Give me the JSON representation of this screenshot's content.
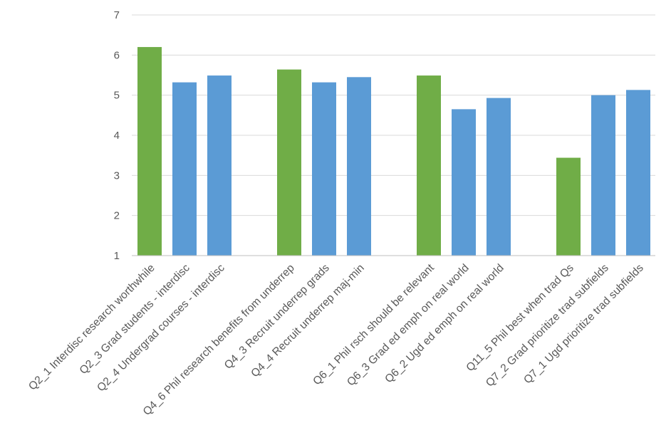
{
  "chart_data": {
    "type": "bar",
    "title": "",
    "xlabel": "",
    "ylabel": "",
    "ylim": [
      1,
      7
    ],
    "yticks": [
      1,
      2,
      3,
      4,
      5,
      6,
      7
    ],
    "grid": true,
    "colors": {
      "highlight": "#70AD47",
      "normal": "#5B9BD5",
      "gridline": "#D9D9D9",
      "axis": "#BFBFBF"
    },
    "groups": [
      {
        "bars": [
          {
            "label": "Q2_1 Interdisc research worthwhile",
            "value": 6.2,
            "highlight": true
          },
          {
            "label": "Q2_3 Grad students - interdisc",
            "value": 5.32,
            "highlight": false
          },
          {
            "label": "Q2_4 Undergrad courses - interdisc",
            "value": 5.49,
            "highlight": false
          }
        ]
      },
      {
        "bars": [
          {
            "label": "Q4_6 Phil research benefits from underrep",
            "value": 5.64,
            "highlight": true
          },
          {
            "label": "Q4_3 Recruit underrep grads",
            "value": 5.32,
            "highlight": false
          },
          {
            "label": "Q4_4 Recruit underrep maj-min",
            "value": 5.45,
            "highlight": false
          }
        ]
      },
      {
        "bars": [
          {
            "label": "Q6_1 Phil rsch should be relevant",
            "value": 5.49,
            "highlight": true
          },
          {
            "label": "Q6_3 Grad ed emph on real world",
            "value": 4.65,
            "highlight": false
          },
          {
            "label": "Q6_2 Ugd ed emph on real world",
            "value": 4.93,
            "highlight": false
          }
        ]
      },
      {
        "bars": [
          {
            "label": "Q11_5 Phil best when trad Qs",
            "value": 3.44,
            "highlight": true
          },
          {
            "label": "Q7_2 Grad prioritize trad subfields",
            "value": 5.0,
            "highlight": false
          },
          {
            "label": "Q7_1 Ugd prioritize trad subfields",
            "value": 5.13,
            "highlight": false
          }
        ]
      }
    ]
  }
}
